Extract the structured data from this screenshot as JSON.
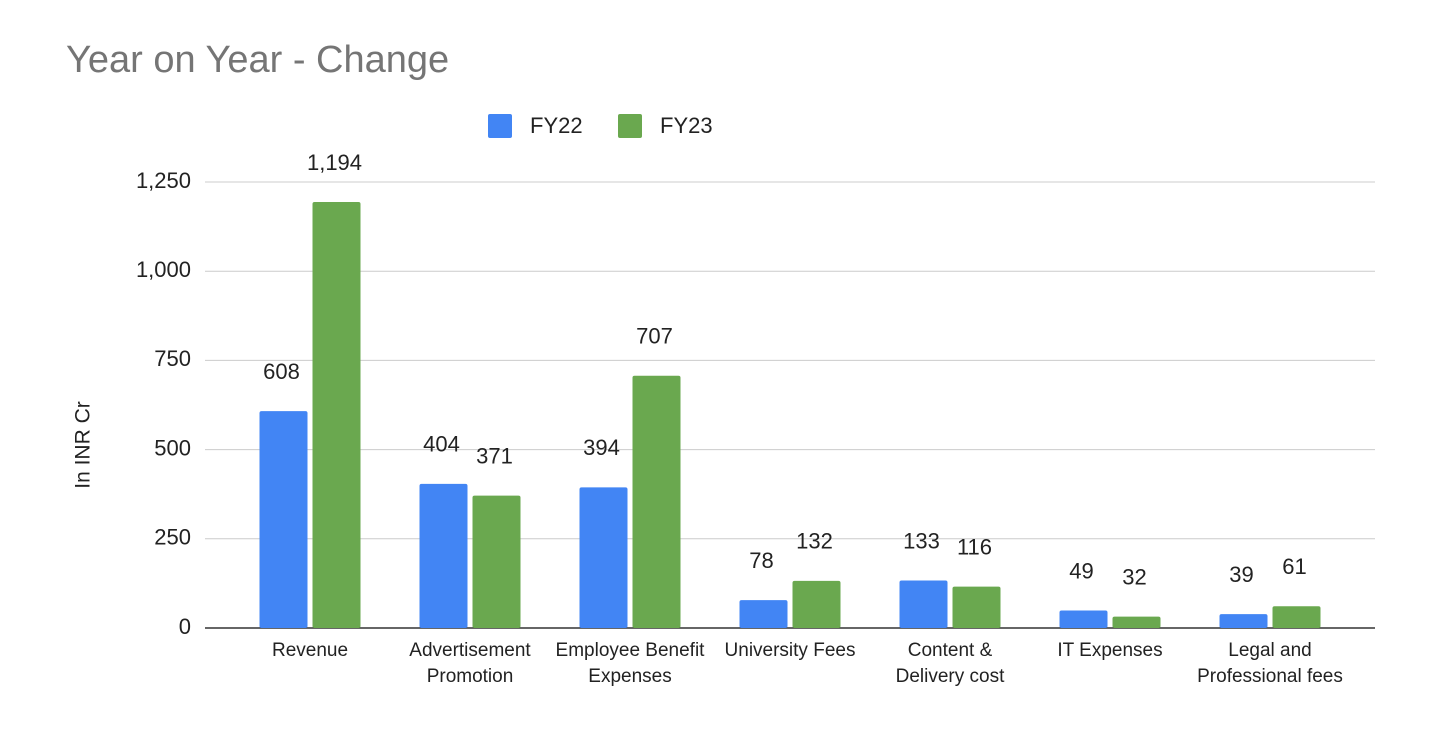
{
  "chart_data": {
    "type": "bar",
    "title": "Year on Year - Change",
    "y_label": "In INR Cr",
    "categories": [
      "Revenue",
      "Advertisement Promotion",
      "Employee Benefit Expenses",
      "University Fees",
      "Content & Delivery cost",
      "IT Expenses",
      "Legal and Professional fees"
    ],
    "series": [
      {
        "name": "FY22",
        "color": "#4285f4",
        "values": [
          608,
          404,
          394,
          78,
          133,
          49,
          39
        ]
      },
      {
        "name": "FY23",
        "color": "#6aa84f",
        "values": [
          1194,
          371,
          707,
          132,
          116,
          32,
          61
        ],
        "value_labels": [
          "1,194",
          "371",
          "707",
          "132",
          "116",
          "32",
          "61"
        ]
      }
    ],
    "ylim": [
      0,
      1250
    ],
    "yticks": [
      0,
      250,
      500,
      750,
      {
        "value": 1000,
        "label": "1,000"
      },
      {
        "value": 1250,
        "label": "1,250"
      }
    ],
    "grid": true,
    "legend": "top"
  }
}
